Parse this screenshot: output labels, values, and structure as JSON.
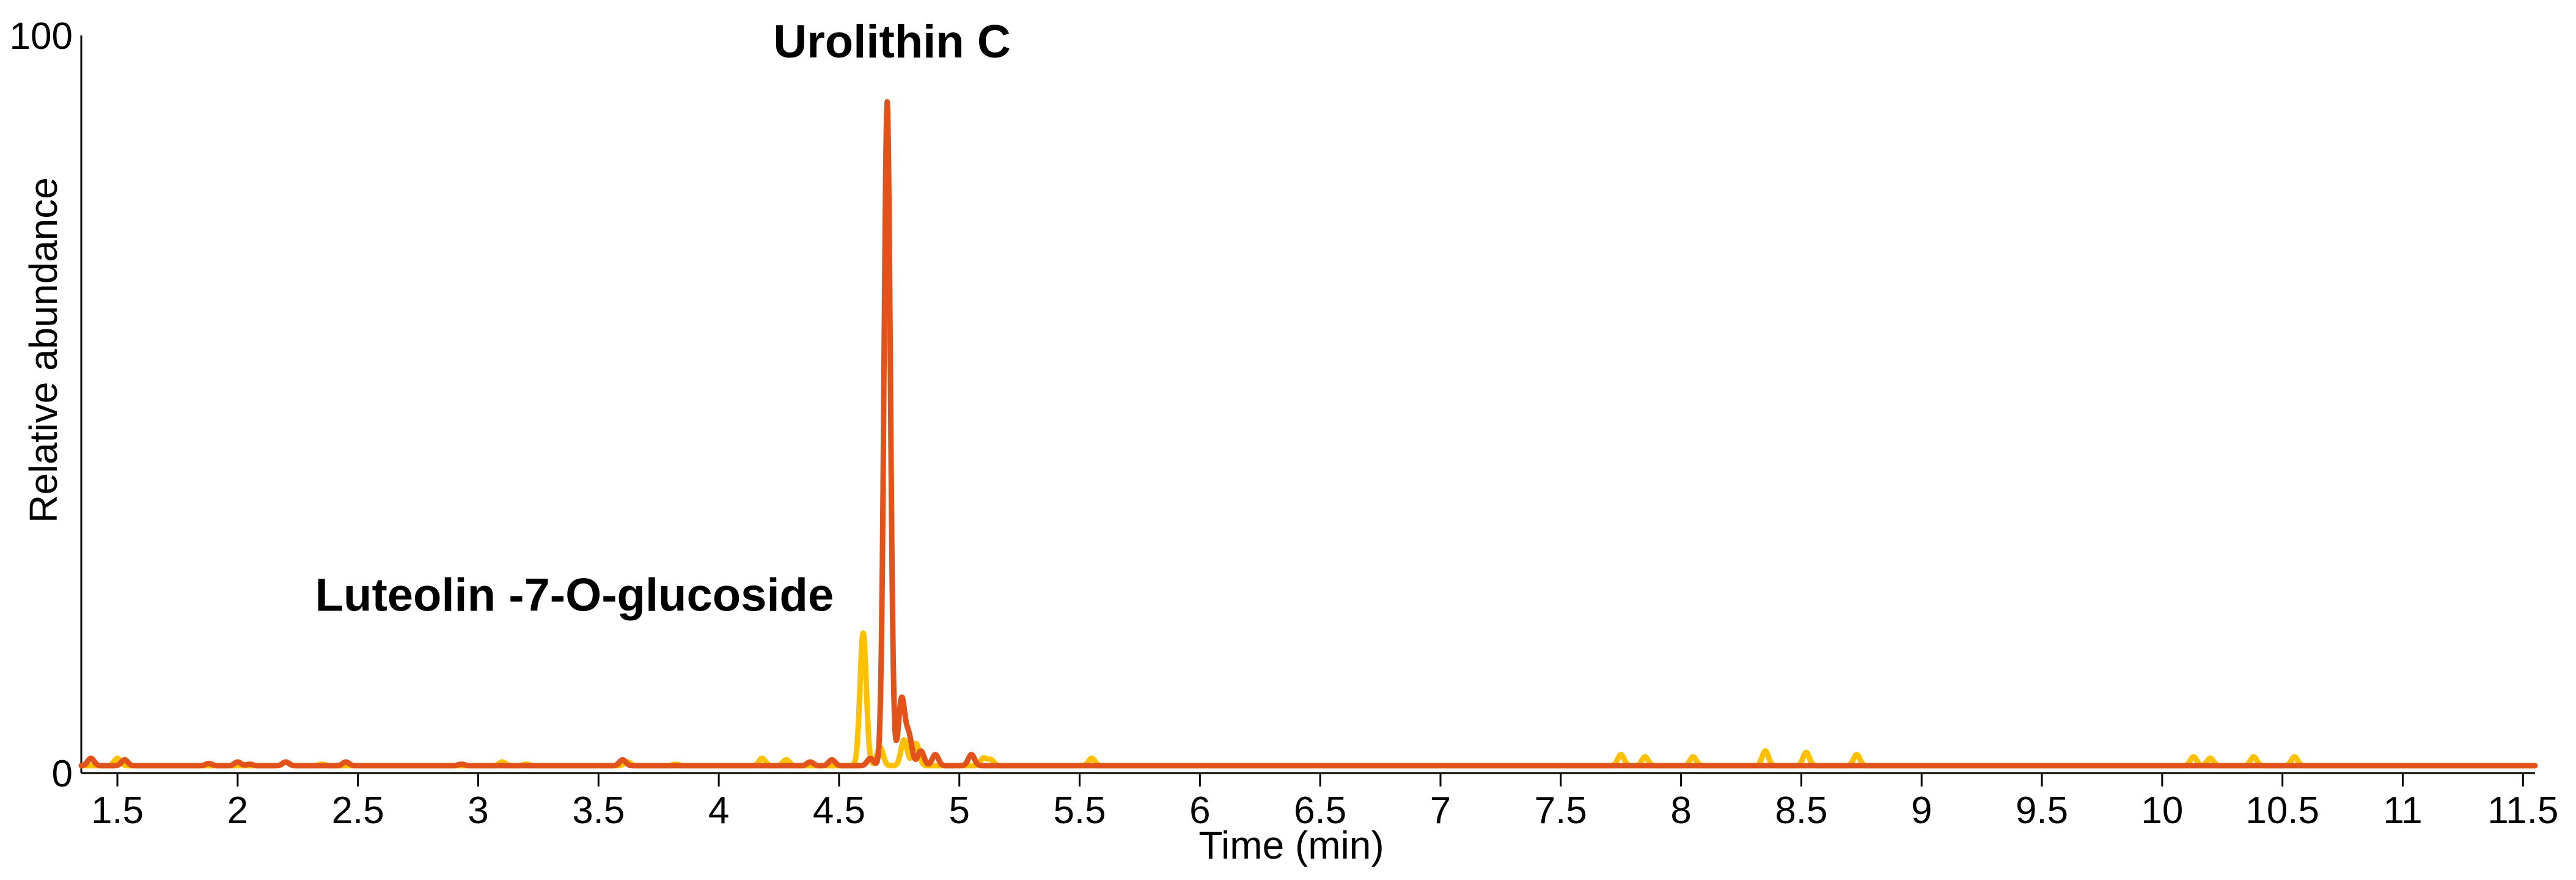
{
  "chart_data": {
    "type": "line",
    "title": "",
    "xlabel": "Time (min)",
    "ylabel": "Relative abundance",
    "xlim": [
      1.35,
      11.55
    ],
    "ylim": [
      0,
      100
    ],
    "x_ticks": [
      1.5,
      2,
      2.5,
      3,
      3.5,
      4,
      4.5,
      5,
      5.5,
      6,
      6.5,
      7,
      7.5,
      8,
      8.5,
      9,
      9.5,
      10,
      10.5,
      11,
      11.5
    ],
    "x_tick_labels": [
      "1.5",
      "2",
      "2.5",
      "3",
      "3.5",
      "4",
      "4.5",
      "5",
      "5.5",
      "6",
      "6.5",
      "7",
      "7.5",
      "8",
      "8.5",
      "9",
      "9.5",
      "10",
      "10.5",
      "11",
      "11.5"
    ],
    "y_ticks": [
      0,
      100
    ],
    "y_tick_labels": [
      "0",
      "100"
    ],
    "grid": false,
    "legend": "none",
    "baseline": 1,
    "series": [
      {
        "color": "#FFC000",
        "peaks": [
          [
            1.5,
            2.0
          ],
          [
            2.2,
            1.5
          ],
          [
            2.35,
            1.2
          ],
          [
            3.1,
            1.5
          ],
          [
            3.2,
            1.2
          ],
          [
            3.62,
            1.5
          ],
          [
            3.82,
            1.2
          ],
          [
            4.18,
            2.0
          ],
          [
            4.28,
            1.8
          ],
          [
            4.6,
            19
          ],
          [
            4.67,
            3.5
          ],
          [
            4.77,
            4.5
          ],
          [
            4.82,
            4.0
          ],
          [
            5.1,
            2.0
          ],
          [
            5.13,
            1.8
          ],
          [
            5.55,
            2.0
          ],
          [
            7.75,
            2.5
          ],
          [
            7.85,
            2.2
          ],
          [
            8.05,
            2.2
          ],
          [
            8.35,
            3.0
          ],
          [
            8.52,
            2.8
          ],
          [
            8.73,
            2.5
          ],
          [
            10.13,
            2.2
          ],
          [
            10.2,
            2.0
          ],
          [
            10.38,
            2.2
          ],
          [
            10.55,
            2.2
          ]
        ]
      },
      {
        "color": "#E2521B",
        "peaks": [
          [
            1.39,
            2.0
          ],
          [
            1.53,
            1.8
          ],
          [
            1.88,
            1.3
          ],
          [
            2.0,
            1.5
          ],
          [
            2.05,
            1.2
          ],
          [
            2.2,
            1.5
          ],
          [
            2.45,
            1.5
          ],
          [
            2.93,
            1.2
          ],
          [
            3.6,
            1.8
          ],
          [
            4.38,
            1.5
          ],
          [
            4.47,
            1.8
          ],
          [
            4.63,
            2.0
          ],
          [
            4.7,
            91
          ],
          [
            4.76,
            10
          ],
          [
            4.79,
            5
          ],
          [
            4.84,
            3.0
          ],
          [
            4.9,
            2.5
          ],
          [
            5.05,
            2.5
          ]
        ]
      }
    ],
    "annotations": [
      {
        "text": "Urolithin C",
        "x": 4.72,
        "y": 97
      },
      {
        "text": "Luteolin -7-O-glucoside",
        "x": 3.4,
        "y": 22
      }
    ]
  }
}
